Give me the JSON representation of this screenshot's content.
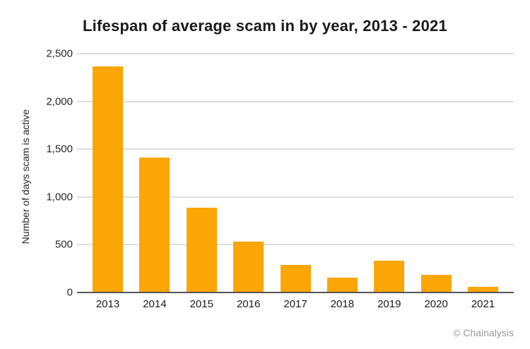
{
  "page": {
    "title": "Lifespan of average scam in by year, 2013 - 2021",
    "attribution": "© Chainalysis"
  },
  "colors": {
    "bar": "#FBA604",
    "gridline": "#E0E0E0",
    "baseline": "#555555",
    "axis_text": "#262626",
    "title_text": "#1A1A1A",
    "attribution_text": "#9B9B9B",
    "background": "#FFFFFF"
  },
  "chart_data": {
    "type": "bar",
    "title": "Lifespan of average scam in by year, 2013 - 2021",
    "categories": [
      "2013",
      "2014",
      "2015",
      "2016",
      "2017",
      "2018",
      "2019",
      "2020",
      "2021"
    ],
    "values": [
      2370,
      1410,
      885,
      530,
      290,
      155,
      330,
      185,
      60
    ],
    "series": [
      {
        "name": "Number of days scam is active",
        "values": [
          2370,
          1410,
          885,
          530,
          290,
          155,
          330,
          185,
          60
        ]
      }
    ],
    "xlabel": "",
    "ylabel": "Number of days scam is active",
    "ylim": [
      0,
      2500
    ],
    "yticks": [
      {
        "value": 0,
        "label": "0"
      },
      {
        "value": 500,
        "label": "500"
      },
      {
        "value": 1000,
        "label": "1,000"
      },
      {
        "value": 1500,
        "label": "1,500"
      },
      {
        "value": 2000,
        "label": "2,000"
      },
      {
        "value": 2500,
        "label": "2,500"
      }
    ],
    "grid": true,
    "legend": false,
    "source": "© Chainalysis"
  }
}
